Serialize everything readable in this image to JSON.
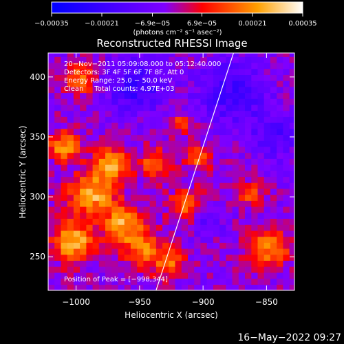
{
  "chart_data": {
    "type": "heatmap",
    "title": "Reconstructed RHESSI Image",
    "xlabel": "Heliocentric X (arcsec)",
    "ylabel": "Heliocentric Y (arcsec)",
    "xlim": [
      -1022,
      -828
    ],
    "ylim": [
      222,
      420
    ],
    "x_ticks": [
      {
        "value": -1000,
        "label": "−1000"
      },
      {
        "value": -950,
        "label": "−950"
      },
      {
        "value": -900,
        "label": "−900"
      },
      {
        "value": -850,
        "label": "−850"
      }
    ],
    "y_ticks": [
      {
        "value": 250,
        "label": "250"
      },
      {
        "value": 300,
        "label": "300"
      },
      {
        "value": 350,
        "label": "350"
      },
      {
        "value": 400,
        "label": "400"
      }
    ],
    "colorbar": {
      "range": [
        -0.00035,
        0.00035
      ],
      "ticks": [
        {
          "value": -0.00035,
          "label": "−0.00035"
        },
        {
          "value": -0.00021,
          "label": "−0.00021"
        },
        {
          "value": -6.9e-05,
          "label": "−6.9e−05"
        },
        {
          "value": 6.9e-05,
          "label": "6.9e−05"
        },
        {
          "value": 0.00021,
          "label": "0.00021"
        },
        {
          "value": 0.00035,
          "label": "0.00035"
        }
      ],
      "unit_label": "(photons cm⁻² s⁻¹ asec⁻²)",
      "colors": [
        "#0000ff",
        "#7f00ff",
        "#ff0000",
        "#ffa000",
        "#ffffff"
      ]
    },
    "annotations": [
      "20−Nov−2011 05:09:08.000 to 05:12:40.000",
      "Detectors: 3F 4F 5F 6F 7F 8F, Att 0",
      "Energy Range: 25.0 − 50.0 keV",
      "Clean     Total counts: 4.97E+03",
      "Position of Peak = [−998,344]"
    ],
    "limb_line": [
      {
        "x": -937,
        "y": 222
      },
      {
        "x": -876,
        "y": 420
      }
    ],
    "peak": {
      "x": -998,
      "y": 344
    }
  },
  "footer": {
    "timestamp": "16−May−2022 09:27"
  }
}
